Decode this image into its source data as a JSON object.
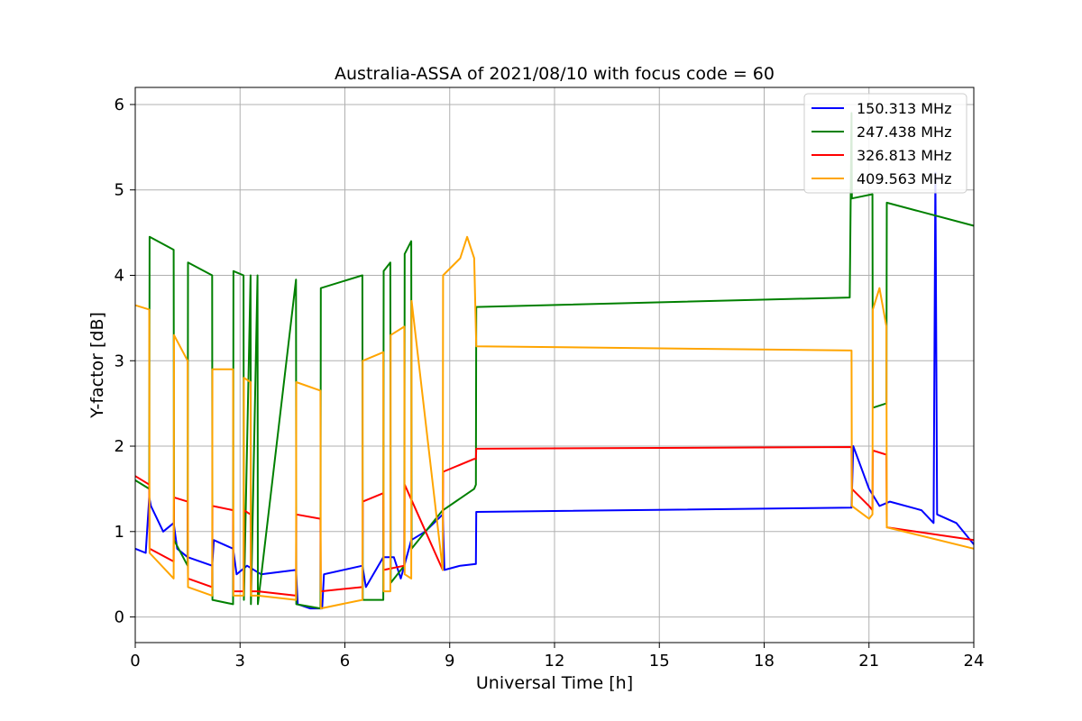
{
  "chart_data": {
    "type": "line",
    "title": "Australia-ASSA of 2021/08/10 with focus code = 60",
    "xlabel": "Universal Time [h]",
    "ylabel": "Y-factor [dB]",
    "xlim": [
      0,
      24
    ],
    "ylim": [
      -0.3,
      6.2
    ],
    "xticks": [
      0,
      3,
      6,
      9,
      12,
      15,
      18,
      21,
      24
    ],
    "yticks": [
      0,
      1,
      2,
      3,
      4,
      5,
      6
    ],
    "grid": true,
    "legend_position": "top-right",
    "series": [
      {
        "name": "150.313 MHz",
        "color": "#0000ff",
        "x": [
          0,
          0.3,
          0.4,
          0.45,
          0.8,
          1.1,
          1.2,
          1.5,
          2.2,
          2.25,
          2.8,
          2.9,
          3.2,
          3.6,
          4.6,
          4.65,
          5.0,
          5.35,
          5.4,
          6.5,
          6.6,
          7.1,
          7.4,
          7.6,
          7.9,
          8.3,
          8.8,
          8.85,
          9.3,
          9.75,
          9.76,
          20.5,
          20.55,
          21.0,
          21.3,
          21.6,
          22.5,
          22.85,
          22.9,
          22.95,
          23.5,
          24
        ],
        "y": [
          0.8,
          0.75,
          1.4,
          1.3,
          1.0,
          1.1,
          0.8,
          0.7,
          0.6,
          0.9,
          0.8,
          0.5,
          0.6,
          0.5,
          0.55,
          0.15,
          0.1,
          0.1,
          0.5,
          0.6,
          0.35,
          0.7,
          0.7,
          0.45,
          0.9,
          1.0,
          1.2,
          0.55,
          0.6,
          0.62,
          1.23,
          1.28,
          2.0,
          1.5,
          1.3,
          1.35,
          1.25,
          1.1,
          5.2,
          1.2,
          1.1,
          0.85
        ]
      },
      {
        "name": "247.438 MHz",
        "color": "#008000",
        "x": [
          0,
          0.4,
          0.41,
          1.1,
          1.11,
          1.5,
          1.51,
          2.2,
          2.21,
          2.8,
          2.81,
          3.1,
          3.11,
          3.3,
          3.31,
          3.5,
          3.51,
          4.6,
          4.61,
          5.3,
          5.31,
          6.5,
          6.51,
          7.1,
          7.11,
          7.3,
          7.31,
          7.7,
          7.71,
          7.9,
          7.91,
          8.8,
          8.81,
          9.7,
          9.75,
          9.76,
          20.45,
          20.5,
          20.51,
          21.1,
          21.11,
          21.5,
          21.51,
          24
        ],
        "y": [
          1.6,
          1.5,
          4.45,
          4.3,
          0.9,
          0.6,
          4.15,
          4.0,
          0.2,
          0.15,
          4.05,
          4.0,
          0.2,
          4.0,
          0.15,
          4.0,
          0.15,
          3.95,
          0.15,
          0.1,
          3.85,
          4.0,
          0.2,
          0.2,
          4.05,
          4.15,
          0.4,
          0.6,
          4.25,
          4.4,
          0.8,
          1.25,
          1.25,
          1.5,
          1.55,
          3.63,
          3.74,
          5.9,
          4.9,
          4.95,
          2.45,
          2.5,
          4.85,
          4.58
        ]
      },
      {
        "name": "326.813 MHz",
        "color": "#ff0000",
        "x": [
          0,
          0.4,
          0.41,
          1.1,
          1.11,
          1.5,
          1.51,
          2.2,
          2.21,
          2.8,
          2.81,
          3.1,
          3.11,
          3.3,
          3.31,
          3.5,
          3.51,
          4.6,
          4.61,
          5.3,
          5.31,
          6.5,
          6.51,
          7.1,
          7.11,
          7.7,
          7.71,
          8.8,
          8.81,
          9.7,
          9.75,
          9.76,
          20.5,
          20.51,
          21.0,
          21.1,
          21.11,
          21.5,
          21.51,
          24
        ],
        "y": [
          1.65,
          1.55,
          0.8,
          0.65,
          1.4,
          1.35,
          0.45,
          0.35,
          1.3,
          1.25,
          0.3,
          0.3,
          1.25,
          1.2,
          0.3,
          0.3,
          0.3,
          0.25,
          1.2,
          1.15,
          0.3,
          0.35,
          1.35,
          1.45,
          0.55,
          0.6,
          1.55,
          0.55,
          1.7,
          1.85,
          1.85,
          1.97,
          1.99,
          1.5,
          1.3,
          1.25,
          1.95,
          1.9,
          1.05,
          0.9
        ]
      },
      {
        "name": "409.563 MHz",
        "color": "#ffa500",
        "x": [
          0,
          0.4,
          0.41,
          1.1,
          1.11,
          1.5,
          1.51,
          2.2,
          2.21,
          2.8,
          2.81,
          3.1,
          3.11,
          3.3,
          3.31,
          3.5,
          3.51,
          4.6,
          4.61,
          5.3,
          5.31,
          6.5,
          6.51,
          7.1,
          7.11,
          7.3,
          7.31,
          7.7,
          7.71,
          7.9,
          7.91,
          8.8,
          8.81,
          9.3,
          9.5,
          9.7,
          9.76,
          20.5,
          20.51,
          21.0,
          21.1,
          21.11,
          21.3,
          21.5,
          21.51,
          24
        ],
        "y": [
          3.65,
          3.6,
          0.75,
          0.45,
          3.3,
          3.0,
          0.35,
          0.25,
          2.9,
          2.9,
          0.25,
          0.25,
          2.8,
          2.75,
          0.25,
          0.25,
          0.25,
          0.2,
          2.75,
          2.65,
          0.1,
          0.2,
          3.0,
          3.1,
          0.3,
          0.3,
          3.3,
          3.4,
          0.5,
          0.45,
          3.7,
          0.55,
          4.0,
          4.2,
          4.45,
          4.2,
          3.17,
          3.12,
          1.3,
          1.15,
          1.2,
          3.6,
          3.85,
          3.4,
          1.05,
          0.8
        ]
      }
    ]
  }
}
